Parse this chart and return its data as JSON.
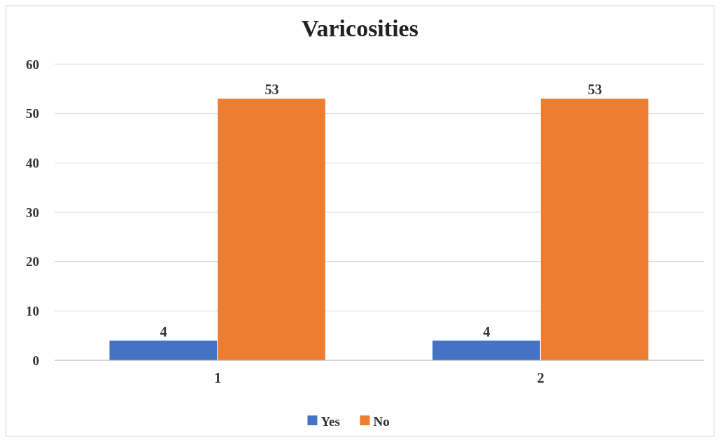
{
  "chart_data": {
    "type": "bar",
    "title": "Varicosities",
    "categories": [
      "1",
      "2"
    ],
    "series": [
      {
        "name": "Yes",
        "color": "#4472c4",
        "values": [
          4,
          4
        ]
      },
      {
        "name": "No",
        "color": "#ed7d31",
        "values": [
          53,
          53
        ]
      }
    ],
    "ylim": [
      0,
      60
    ],
    "yticks": [
      0,
      10,
      20,
      30,
      40,
      50,
      60
    ],
    "grid": "y",
    "legend": "bottom",
    "data_labels": true
  }
}
